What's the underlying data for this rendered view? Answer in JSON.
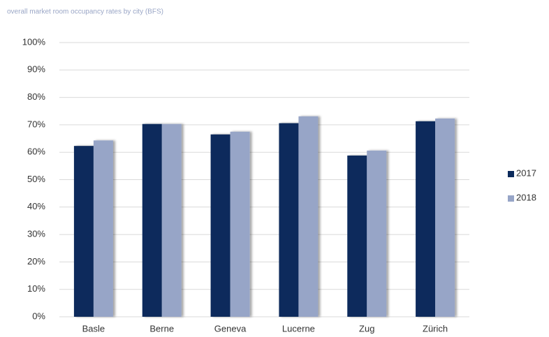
{
  "chart_data": {
    "type": "bar",
    "title": "overall market room occupancy rates by city (BFS)",
    "categories": [
      "Basle",
      "Berne",
      "Geneva",
      "Lucerne",
      "Zug",
      "Zürich"
    ],
    "series": [
      {
        "name": "2017",
        "color": "#0c2b5c",
        "values": [
          62.3,
          70.3,
          66.5,
          70.6,
          58.8,
          71.3
        ]
      },
      {
        "name": "2018",
        "color": "#97a5c7",
        "values": [
          64.3,
          70.3,
          67.5,
          73.1,
          60.6,
          72.3
        ]
      }
    ],
    "ylim": [
      0,
      100
    ],
    "yticks": [
      {
        "value": 0,
        "label": "0%"
      },
      {
        "value": 10,
        "label": "10%"
      },
      {
        "value": 20,
        "label": "20%"
      },
      {
        "value": 30,
        "label": "30%"
      },
      {
        "value": 40,
        "label": "40%"
      },
      {
        "value": 50,
        "label": "50%"
      },
      {
        "value": 60,
        "label": "60%"
      },
      {
        "value": 70,
        "label": "70%"
      },
      {
        "value": 80,
        "label": "80%"
      },
      {
        "value": 90,
        "label": "90%"
      },
      {
        "value": 100,
        "label": "100%"
      }
    ],
    "grid": true,
    "legend": "right"
  }
}
